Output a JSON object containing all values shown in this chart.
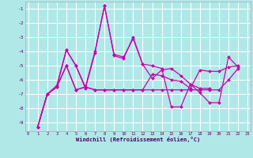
{
  "xlabel": "Windchill (Refroidissement éolien,°C)",
  "bg_color": "#b0e8e8",
  "grid_color": "#ffffff",
  "line_color": "#cc00aa",
  "x_ticks": [
    0,
    1,
    2,
    3,
    4,
    5,
    6,
    7,
    8,
    9,
    10,
    11,
    12,
    13,
    14,
    15,
    16,
    17,
    18,
    19,
    20,
    21,
    22,
    23
  ],
  "y_ticks": [
    -9,
    -8,
    -7,
    -6,
    -5,
    -4,
    -3,
    -2,
    -1
  ],
  "ylim": [
    -9.6,
    -0.5
  ],
  "xlim": [
    -0.3,
    23.3
  ],
  "series": [
    [
      null,
      -9.3,
      -7.0,
      -6.4,
      -3.9,
      -5.0,
      -6.6,
      -4.1,
      -0.8,
      -4.2,
      -4.4,
      -3.1,
      -4.9,
      -5.9,
      -5.3,
      -5.2,
      -5.7,
      -6.3,
      -6.6,
      -6.6,
      null,
      null,
      null,
      null
    ],
    [
      null,
      -9.3,
      -7.0,
      -6.5,
      -3.9,
      -5.0,
      -6.5,
      -4.0,
      -0.8,
      -4.3,
      -4.5,
      -3.0,
      -4.9,
      -5.0,
      -5.2,
      -7.9,
      -7.9,
      -6.3,
      -6.9,
      -7.6,
      -7.6,
      -4.4,
      -5.1,
      null
    ],
    [
      null,
      -9.3,
      -7.0,
      -6.5,
      -5.0,
      -6.7,
      -6.5,
      -6.7,
      -6.7,
      -6.7,
      -6.7,
      -6.7,
      -6.7,
      -6.7,
      -6.7,
      -6.7,
      -6.7,
      -6.7,
      -6.7,
      -6.7,
      -6.7,
      -6.0,
      -5.2,
      null
    ],
    [
      null,
      -9.3,
      -7.0,
      -6.5,
      -5.0,
      -6.7,
      -6.5,
      -6.7,
      -6.7,
      -6.7,
      -6.7,
      -6.7,
      -6.7,
      -5.6,
      -5.7,
      -6.0,
      -6.1,
      -6.6,
      -5.3,
      -5.4,
      -5.4,
      -5.1,
      -5.0,
      null
    ]
  ]
}
